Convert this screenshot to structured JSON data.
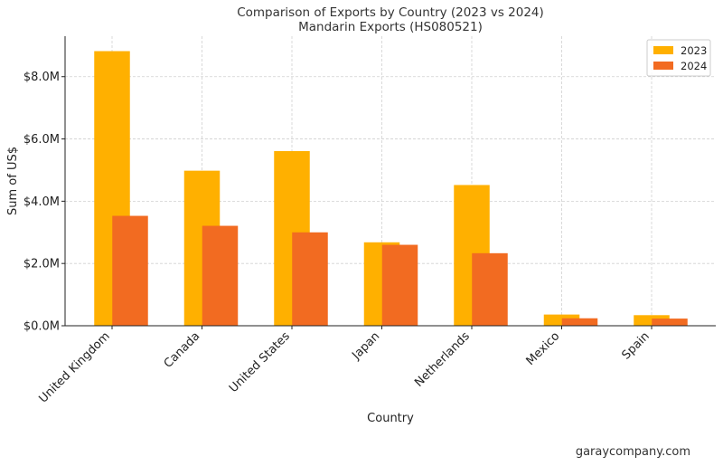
{
  "chart_data": {
    "type": "bar",
    "title": "Comparison of Exports by Country (2023 vs 2024)",
    "subtitle": "Mandarin Exports (HS080521)",
    "xlabel": "Country",
    "ylabel": "Sum of US$",
    "categories": [
      "United Kingdom",
      "Canada",
      "United States",
      "Japan",
      "Netherlands",
      "Mexico",
      "Spain"
    ],
    "series": [
      {
        "name": "2023",
        "color": "#FFB000",
        "values": [
          8.82,
          4.98,
          5.61,
          2.68,
          4.52,
          0.36,
          0.34
        ]
      },
      {
        "name": "2024",
        "color": "#F26B21",
        "values": [
          3.53,
          3.21,
          3.0,
          2.6,
          2.33,
          0.24,
          0.23
        ]
      }
    ],
    "unit": "millions of US$",
    "ylim": [
      0,
      9.3
    ],
    "yticks": [
      0,
      2,
      4,
      6,
      8
    ],
    "ytick_labels": [
      "$0.0M",
      "$2.0M",
      "$4.0M",
      "$6.0M",
      "$8.0M"
    ],
    "grid": true,
    "legend_position": "top-right"
  },
  "watermark": "garaycompany.com"
}
